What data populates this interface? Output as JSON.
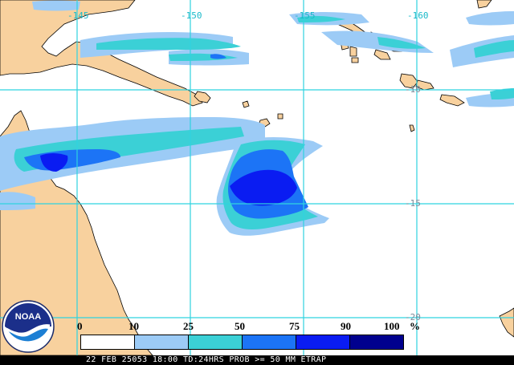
{
  "map": {
    "longitude_labels": [
      "-145",
      "-150",
      "-155",
      "-160"
    ],
    "latitude_labels": [
      "-10",
      "-15",
      "-20"
    ],
    "colors": {
      "land": "#f8d19e",
      "ocean": "#ffffff",
      "grid": "#2fd3e0",
      "coast": "#000000"
    }
  },
  "legend": {
    "ticks": [
      "0",
      "10",
      "25",
      "50",
      "75",
      "90",
      "100"
    ],
    "unit": "%",
    "colors": [
      "#ffffff",
      "#9ccbf6",
      "#3bd0d6",
      "#1c74f6",
      "#0a1cf2",
      "#00008e"
    ]
  },
  "footer": {
    "text": "22 FEB 25053 18:00 TD:24HRS PROB >= 50 MM ETRAP"
  },
  "logo": {
    "text": "NOAA",
    "icon": "noaa-logo-icon"
  }
}
